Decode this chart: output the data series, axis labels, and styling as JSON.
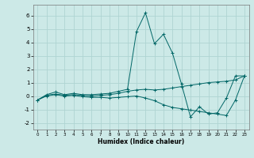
{
  "xlabel": "Humidex (Indice chaleur)",
  "ylabel": "",
  "xlim": [
    -0.5,
    23.5
  ],
  "ylim": [
    -2.5,
    6.8
  ],
  "yticks": [
    -2,
    -1,
    0,
    1,
    2,
    3,
    4,
    5,
    6
  ],
  "xticks": [
    0,
    1,
    2,
    3,
    4,
    5,
    6,
    7,
    8,
    9,
    10,
    11,
    12,
    13,
    14,
    15,
    16,
    17,
    18,
    19,
    20,
    21,
    22,
    23
  ],
  "background_color": "#cce9e7",
  "grid_color": "#afd4d2",
  "line_color": "#006666",
  "line1_x": [
    0,
    1,
    2,
    3,
    4,
    5,
    6,
    7,
    8,
    9,
    10,
    11,
    12,
    13,
    14,
    15,
    16,
    17,
    18,
    19,
    20,
    21,
    22,
    23
  ],
  "line1_y": [
    -0.3,
    0.1,
    0.3,
    0.1,
    0.2,
    0.1,
    0.1,
    0.15,
    0.2,
    0.35,
    0.5,
    4.8,
    6.2,
    3.9,
    4.6,
    3.2,
    0.9,
    -1.55,
    -0.8,
    -1.35,
    -1.25,
    -0.15,
    1.5,
    1.5
  ],
  "line2_x": [
    0,
    1,
    2,
    3,
    4,
    5,
    6,
    7,
    8,
    9,
    10,
    11,
    12,
    13,
    14,
    15,
    16,
    17,
    18,
    19,
    20,
    21,
    22,
    23
  ],
  "line2_y": [
    -0.3,
    0.05,
    0.15,
    0.05,
    0.1,
    0.05,
    0.0,
    0.05,
    0.1,
    0.2,
    0.35,
    0.45,
    0.5,
    0.45,
    0.5,
    0.6,
    0.7,
    0.8,
    0.9,
    1.0,
    1.05,
    1.1,
    1.2,
    1.5
  ],
  "line3_x": [
    0,
    1,
    2,
    3,
    4,
    5,
    6,
    7,
    8,
    9,
    10,
    11,
    12,
    13,
    14,
    15,
    16,
    17,
    18,
    19,
    20,
    21,
    22,
    23
  ],
  "line3_y": [
    -0.3,
    0.0,
    0.1,
    0.0,
    0.05,
    -0.05,
    -0.1,
    -0.1,
    -0.15,
    -0.1,
    -0.05,
    0.0,
    -0.15,
    -0.35,
    -0.65,
    -0.85,
    -0.95,
    -1.05,
    -1.15,
    -1.25,
    -1.35,
    -1.45,
    -0.3,
    1.5
  ]
}
